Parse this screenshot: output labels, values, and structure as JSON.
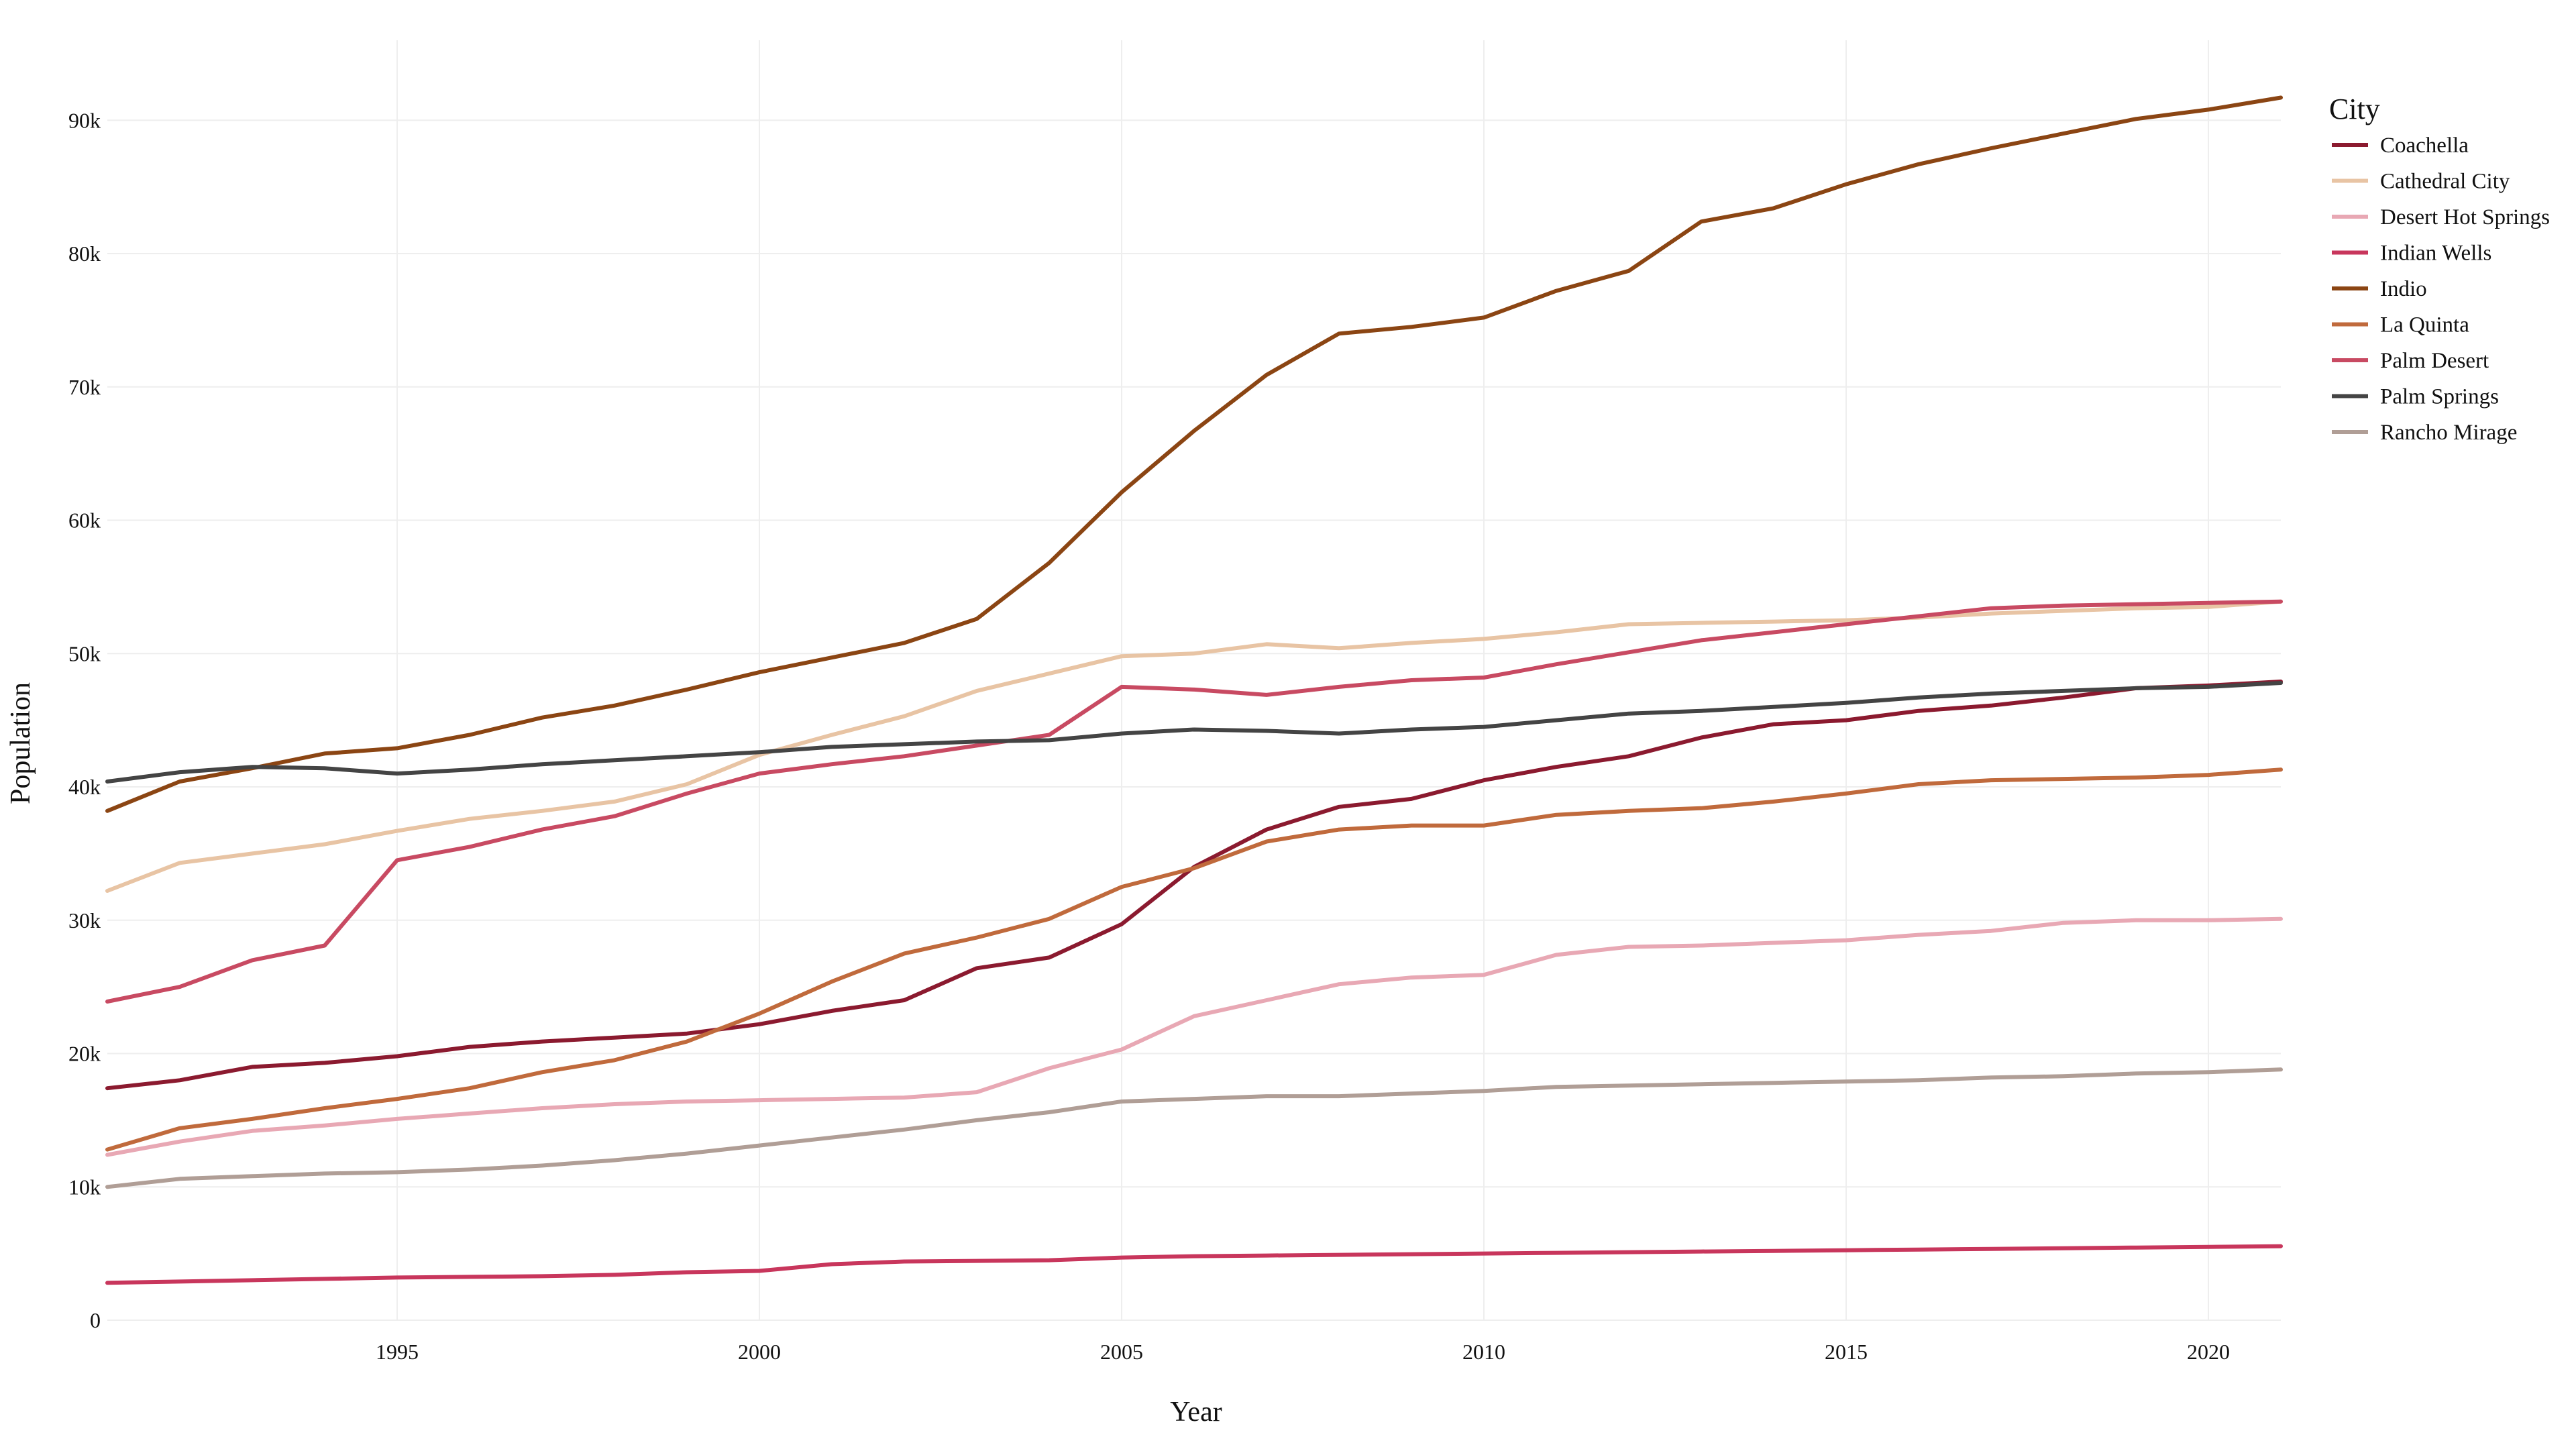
{
  "chart_data": {
    "type": "line",
    "title": "",
    "xlabel": "Year",
    "ylabel": "Population",
    "xlim": [
      1991,
      2021
    ],
    "ylim": [
      0,
      96000
    ],
    "x_ticks": [
      1995,
      2000,
      2005,
      2010,
      2015,
      2020
    ],
    "y_ticks": [
      0,
      10000,
      20000,
      30000,
      40000,
      50000,
      60000,
      70000,
      80000,
      90000
    ],
    "y_tick_labels": [
      "0",
      "10k",
      "20k",
      "30k",
      "40k",
      "50k",
      "60k",
      "70k",
      "80k",
      "90k"
    ],
    "grid": true,
    "legend": {
      "title": "City",
      "position": "right"
    },
    "x": [
      1991,
      1992,
      1993,
      1994,
      1995,
      1996,
      1997,
      1998,
      1999,
      2000,
      2001,
      2002,
      2003,
      2004,
      2005,
      2006,
      2007,
      2008,
      2009,
      2010,
      2011,
      2012,
      2013,
      2014,
      2015,
      2016,
      2017,
      2018,
      2019,
      2020,
      2021
    ],
    "series": [
      {
        "name": "Coachella",
        "color": "#8b1a2f",
        "values": [
          17400,
          18000,
          19000,
          19300,
          19800,
          20500,
          20900,
          21200,
          21500,
          22200,
          23200,
          24000,
          26400,
          27200,
          29700,
          34000,
          36800,
          38500,
          39100,
          40500,
          41500,
          42300,
          43700,
          44700,
          45000,
          45700,
          46100,
          46700,
          47400,
          47600,
          47900
        ]
      },
      {
        "name": "Cathedral City",
        "color": "#e8c4a4",
        "values": [
          32200,
          34300,
          35000,
          35700,
          36700,
          37600,
          38200,
          38900,
          40200,
          42400,
          43900,
          45300,
          47200,
          48500,
          49800,
          50000,
          50700,
          50400,
          50800,
          51100,
          51600,
          52200,
          52300,
          52400,
          52500,
          52700,
          53000,
          53200,
          53400,
          53500,
          53900
        ]
      },
      {
        "name": "Desert Hot Springs",
        "color": "#e8a8b4",
        "values": [
          12400,
          13400,
          14200,
          14600,
          15100,
          15500,
          15900,
          16200,
          16400,
          16500,
          16600,
          16700,
          17100,
          18900,
          20300,
          22800,
          24000,
          25200,
          25700,
          25900,
          27400,
          28000,
          28100,
          28300,
          28500,
          28900,
          29200,
          29800,
          30000,
          30000,
          30100
        ]
      },
      {
        "name": "Indian Wells",
        "color": "#c8365c",
        "values": [
          2800,
          2900,
          3000,
          3100,
          3200,
          3250,
          3300,
          3400,
          3600,
          3700,
          4200,
          4400,
          4450,
          4500,
          4700,
          4800,
          4850,
          4900,
          4950,
          5000,
          5050,
          5100,
          5150,
          5200,
          5250,
          5300,
          5350,
          5400,
          5450,
          5500,
          5550
        ]
      },
      {
        "name": "Indio",
        "color": "#8b4513",
        "values": [
          38200,
          40400,
          41400,
          42500,
          42900,
          43900,
          45200,
          46100,
          47300,
          48600,
          49700,
          50800,
          52600,
          56800,
          62100,
          66700,
          70900,
          74000,
          74500,
          75200,
          77200,
          78700,
          82400,
          83400,
          85200,
          86700,
          87900,
          89000,
          90100,
          90800,
          91700
        ]
      },
      {
        "name": "La Quinta",
        "color": "#c06a3c",
        "values": [
          12800,
          14400,
          15100,
          15900,
          16600,
          17400,
          18600,
          19500,
          20900,
          23000,
          25400,
          27500,
          28700,
          30100,
          32500,
          33900,
          35900,
          36800,
          37100,
          37100,
          37900,
          38200,
          38400,
          38900,
          39500,
          40200,
          40500,
          40600,
          40700,
          40900,
          41300
        ]
      },
      {
        "name": "Palm Desert",
        "color": "#c84a62",
        "values": [
          23900,
          25000,
          27000,
          28100,
          34500,
          35500,
          36800,
          37800,
          39500,
          41000,
          41700,
          42300,
          43100,
          43900,
          47500,
          47300,
          46900,
          47500,
          48000,
          48200,
          49200,
          50100,
          51000,
          51600,
          52200,
          52800,
          53400,
          53600,
          53700,
          53800,
          53900
        ]
      },
      {
        "name": "Palm Springs",
        "color": "#444444",
        "values": [
          40400,
          41100,
          41500,
          41400,
          41000,
          41300,
          41700,
          42000,
          42300,
          42600,
          43000,
          43200,
          43400,
          43500,
          44000,
          44300,
          44200,
          44000,
          44300,
          44500,
          45000,
          45500,
          45700,
          46000,
          46300,
          46700,
          47000,
          47200,
          47400,
          47500,
          47800
        ]
      },
      {
        "name": "Rancho Mirage",
        "color": "#b09e96",
        "values": [
          10000,
          10600,
          10800,
          11000,
          11100,
          11300,
          11600,
          12000,
          12500,
          13100,
          13700,
          14300,
          15000,
          15600,
          16400,
          16600,
          16800,
          16800,
          17000,
          17200,
          17500,
          17600,
          17700,
          17800,
          17900,
          18000,
          18200,
          18300,
          18500,
          18600,
          18800
        ]
      }
    ]
  }
}
